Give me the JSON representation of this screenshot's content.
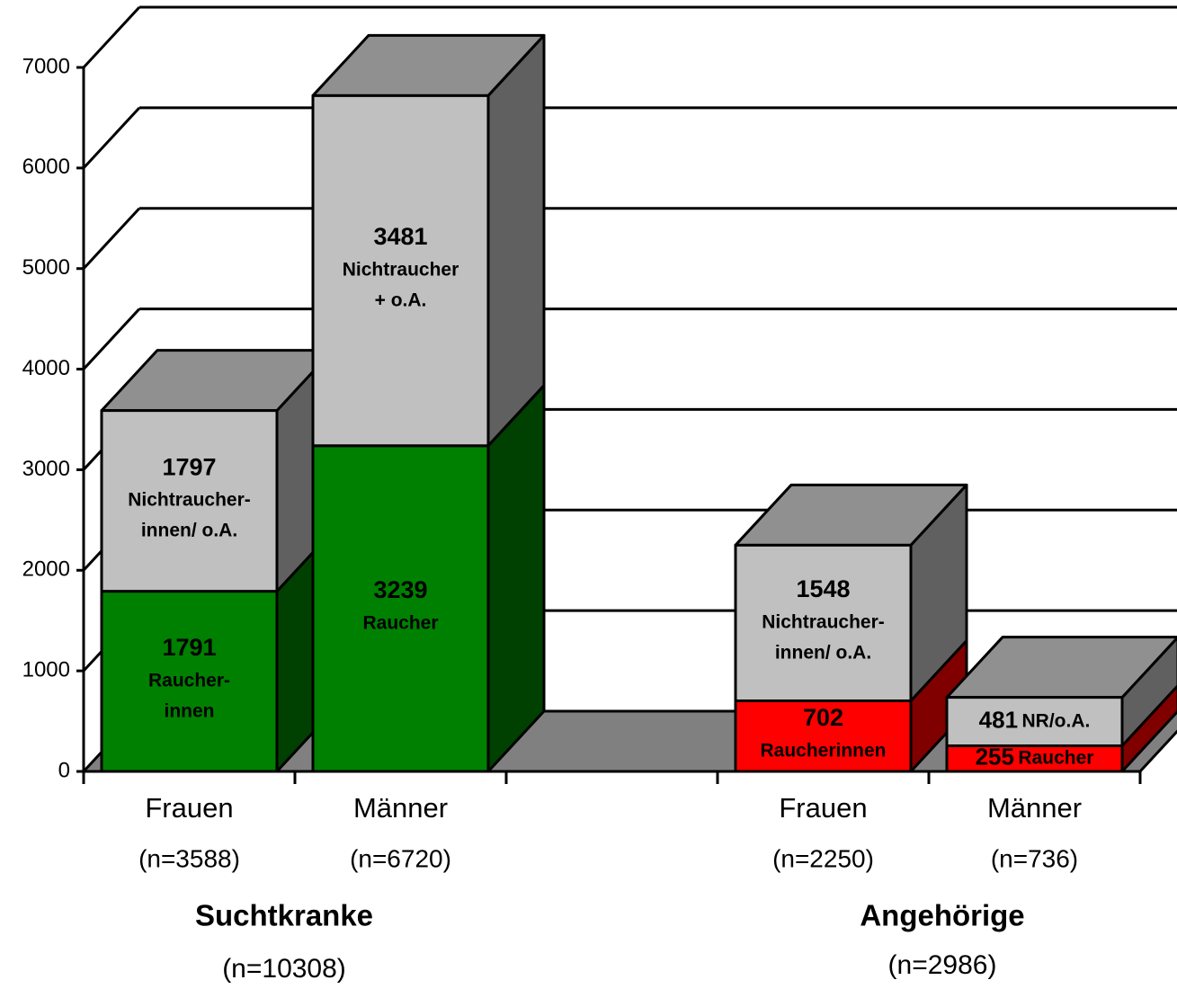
{
  "chart_data": {
    "type": "bar3d_stacked",
    "categories": [
      "Frauen",
      "Männer",
      null,
      "Frauen",
      "Männer"
    ],
    "category_notes": [
      "(n=3588)",
      "(n=6720)",
      null,
      "(n=2250)",
      "(n=736)"
    ],
    "groups": [
      {
        "label": "Suchtkranke",
        "note": "(n=10308)"
      },
      {
        "label": "Angehörige",
        "note": "(n=2986)"
      }
    ],
    "series": [
      {
        "colors": [
          "#008000",
          "#008000",
          null,
          "#ff0000",
          "#ff0000"
        ],
        "values": [
          1791,
          3239,
          null,
          702,
          255
        ],
        "segment_labels": [
          [
            "Raucher-",
            "innen"
          ],
          [
            "Raucher"
          ],
          null,
          [
            "Raucherinnen"
          ],
          [
            "Raucher"
          ]
        ]
      },
      {
        "colors": [
          "#c0c0c0",
          "#c0c0c0",
          null,
          "#c0c0c0",
          "#c0c0c0"
        ],
        "values": [
          1797,
          3481,
          null,
          1548,
          481
        ],
        "segment_labels": [
          [
            "Nichtraucher-",
            "innen/ o.A."
          ],
          [
            "Nichtraucher",
            "+ o.A."
          ],
          null,
          [
            "Nichtraucher-",
            "innen/ o.A."
          ],
          [
            "NR/o.A."
          ]
        ]
      }
    ],
    "ylim": [
      0,
      7000
    ],
    "yticks": [
      0,
      1000,
      2000,
      3000,
      4000,
      5000,
      6000,
      7000
    ],
    "grid": true
  }
}
